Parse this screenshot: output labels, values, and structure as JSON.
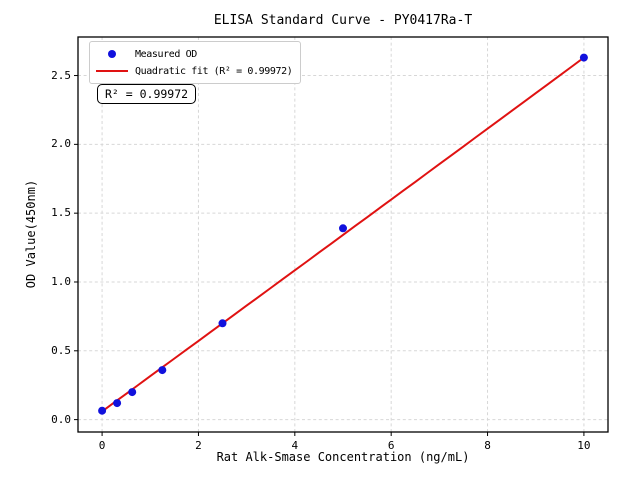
{
  "figure": {
    "background": "#ffffff",
    "text_color": "#000000",
    "grid_color": "#d7d7d7"
  },
  "chart_data": {
    "type": "scatter",
    "title": "ELISA Standard Curve - PY0417Ra-T",
    "xlabel": "Rat Alk-Smase Concentration (ng/mL)",
    "ylabel": "OD Value(450nm)",
    "xlim": [
      -0.5,
      10.5
    ],
    "ylim": [
      -0.09,
      2.78
    ],
    "xtick_labels": [
      "0",
      "2",
      "4",
      "6",
      "8",
      "10"
    ],
    "xtick_values": [
      0,
      2,
      4,
      6,
      8,
      10
    ],
    "ytick_labels": [
      "0.0",
      "0.5",
      "1.0",
      "1.5",
      "2.0",
      "2.5"
    ],
    "ytick_values": [
      0,
      0.5,
      1.0,
      1.5,
      2.0,
      2.5
    ],
    "grid": true,
    "legend": {
      "position": "upper left",
      "entries": [
        {
          "label": "Measured OD",
          "marker": "circle",
          "color": "#1111dd"
        },
        {
          "label": "Quadratic fit (R² = 0.99972)",
          "marker": "line",
          "color": "#e01212"
        }
      ]
    },
    "annotation": {
      "text": "R² = 0.99972"
    },
    "series": [
      {
        "name": "Measured OD",
        "type": "scatter",
        "color": "#1111dd",
        "marker_radius": 4,
        "points": [
          {
            "x": 0,
            "y": 0.065
          },
          {
            "x": 0.312,
            "y": 0.12
          },
          {
            "x": 0.625,
            "y": 0.2
          },
          {
            "x": 1.25,
            "y": 0.36
          },
          {
            "x": 2.5,
            "y": 0.7
          },
          {
            "x": 5,
            "y": 1.39
          },
          {
            "x": 10,
            "y": 2.63
          }
        ]
      },
      {
        "name": "Quadratic fit",
        "type": "line",
        "color": "#e01212",
        "line_width": 2,
        "equation": {
          "c0": 0.06,
          "c1": 0.2557,
          "c2": 0.00013
        },
        "x_range": [
          0,
          10
        ],
        "r_squared": 0.99972
      }
    ]
  }
}
